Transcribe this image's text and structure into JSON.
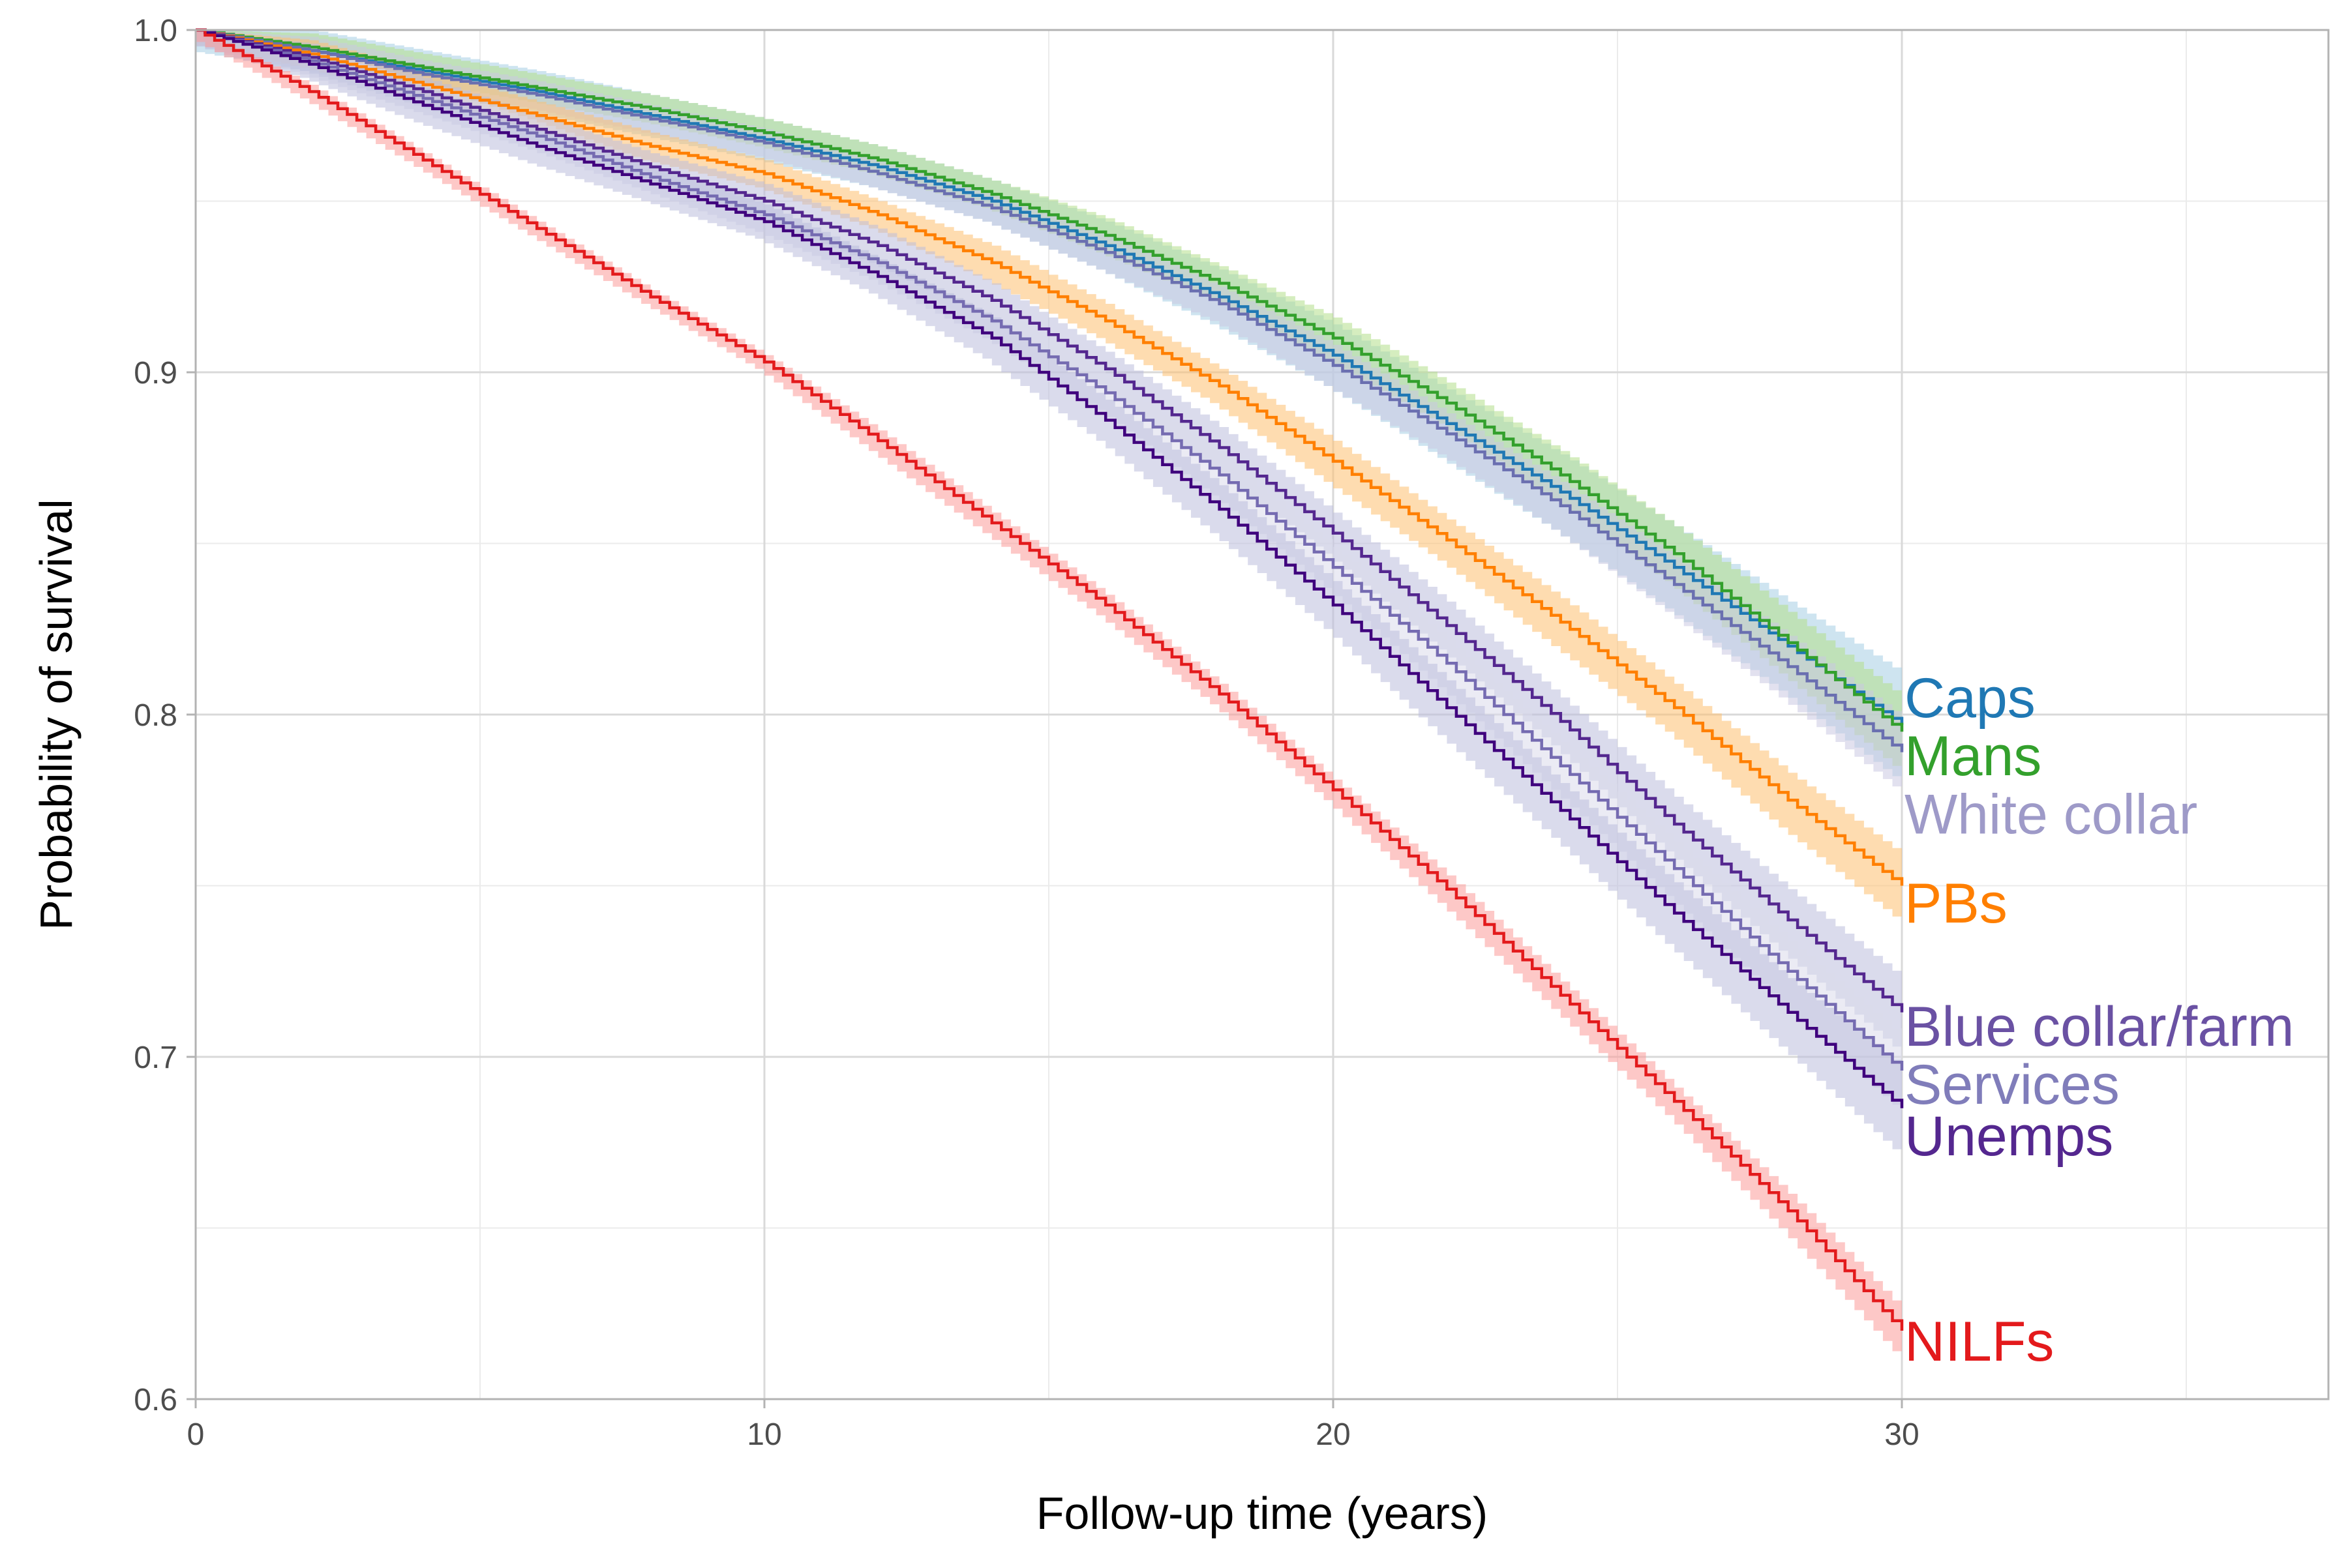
{
  "chart_data": {
    "type": "line",
    "subtype": "kaplan-meier survival curves with confidence bands",
    "title": "",
    "xlabel": "Follow-up time (years)",
    "ylabel": "Probability of survival",
    "xlim": [
      0,
      37.5
    ],
    "ylim": [
      0.6,
      1.0
    ],
    "xticks": [
      0,
      10,
      20,
      30
    ],
    "xtick_labels": [
      "0",
      "10",
      "20",
      "30"
    ],
    "yticks": [
      0.6,
      0.7,
      0.8,
      0.9,
      1.0
    ],
    "ytick_labels": [
      "0.6",
      "0.7",
      "0.8",
      "0.9",
      "1.0"
    ],
    "grid": true,
    "legend": "direct labels at line ends",
    "x": [
      0,
      2,
      4,
      6,
      8,
      10,
      12,
      14,
      16,
      18,
      20,
      22,
      24,
      26,
      28,
      30
    ],
    "series": [
      {
        "name": "Caps",
        "color": "#1f78b4",
        "band_color": "#a6cee3",
        "values": [
          1.0,
          0.994,
          0.988,
          0.982,
          0.975,
          0.968,
          0.96,
          0.95,
          0.937,
          0.922,
          0.905,
          0.885,
          0.865,
          0.843,
          0.82,
          0.797
        ],
        "band": [
          0.006,
          0.006,
          0.006,
          0.006,
          0.006,
          0.006,
          0.006,
          0.006,
          0.007,
          0.008,
          0.009,
          0.01,
          0.011,
          0.012,
          0.013,
          0.015
        ],
        "label_value": 0.805
      },
      {
        "name": "Mans",
        "color": "#33a02c",
        "band_color": "#b2df8a",
        "values": [
          1.0,
          0.995,
          0.989,
          0.983,
          0.977,
          0.97,
          0.962,
          0.952,
          0.94,
          0.926,
          0.91,
          0.891,
          0.87,
          0.847,
          0.821,
          0.795
        ],
        "band": [
          0.004,
          0.004,
          0.004,
          0.004,
          0.004,
          0.004,
          0.004,
          0.004,
          0.005,
          0.005,
          0.006,
          0.006,
          0.007,
          0.008,
          0.009,
          0.01
        ],
        "label_value": 0.788
      },
      {
        "name": "White collar",
        "color": "#6a6fb0",
        "label_color": "#9e9ac8",
        "band_color": "#cbc9e2",
        "values": [
          1.0,
          0.994,
          0.987,
          0.981,
          0.974,
          0.967,
          0.958,
          0.948,
          0.935,
          0.92,
          0.902,
          0.882,
          0.861,
          0.838,
          0.814,
          0.789
        ],
        "band": [
          0.004,
          0.004,
          0.004,
          0.004,
          0.004,
          0.004,
          0.004,
          0.004,
          0.005,
          0.005,
          0.006,
          0.006,
          0.007,
          0.008,
          0.009,
          0.01
        ],
        "label_value": 0.771
      },
      {
        "name": "PBs",
        "color": "#ff7f00",
        "band_color": "#fdbf6f",
        "values": [
          1.0,
          0.993,
          0.984,
          0.975,
          0.966,
          0.958,
          0.946,
          0.932,
          0.915,
          0.896,
          0.874,
          0.851,
          0.827,
          0.802,
          0.775,
          0.75
        ],
        "band": [
          0.004,
          0.004,
          0.004,
          0.004,
          0.004,
          0.004,
          0.004,
          0.005,
          0.005,
          0.005,
          0.006,
          0.006,
          0.007,
          0.007,
          0.008,
          0.009
        ],
        "label_value": 0.745
      },
      {
        "name": "Blue collar/farm",
        "color": "#54278f",
        "label_color": "#6a51a3",
        "band_color": "#bcbddc",
        "values": [
          1.0,
          0.992,
          0.982,
          0.971,
          0.96,
          0.95,
          0.937,
          0.921,
          0.901,
          0.878,
          0.853,
          0.826,
          0.798,
          0.768,
          0.74,
          0.713
        ],
        "band": [
          0.004,
          0.004,
          0.004,
          0.004,
          0.004,
          0.005,
          0.005,
          0.005,
          0.005,
          0.006,
          0.006,
          0.007,
          0.007,
          0.008,
          0.009,
          0.01
        ],
        "label_value": 0.709
      },
      {
        "name": "Services",
        "color": "#756bb1",
        "label_color": "#807dba",
        "band_color": "#dadaeb",
        "values": [
          1.0,
          0.991,
          0.98,
          0.969,
          0.957,
          0.946,
          0.932,
          0.915,
          0.894,
          0.87,
          0.843,
          0.815,
          0.785,
          0.755,
          0.725,
          0.696
        ],
        "band": [
          0.004,
          0.004,
          0.004,
          0.004,
          0.004,
          0.005,
          0.005,
          0.005,
          0.005,
          0.006,
          0.006,
          0.007,
          0.007,
          0.008,
          0.009,
          0.01
        ],
        "label_value": 0.692
      },
      {
        "name": "Unemps",
        "color": "#3f007d",
        "label_color": "#54278f",
        "band_color": "#bcbddc",
        "values": [
          1.0,
          0.99,
          0.978,
          0.966,
          0.955,
          0.944,
          0.928,
          0.91,
          0.886,
          0.86,
          0.832,
          0.802,
          0.772,
          0.742,
          0.713,
          0.685
        ],
        "band": [
          0.004,
          0.004,
          0.005,
          0.005,
          0.005,
          0.005,
          0.005,
          0.006,
          0.006,
          0.007,
          0.007,
          0.008,
          0.008,
          0.009,
          0.01,
          0.012
        ],
        "label_value": 0.677
      },
      {
        "name": "NILFs",
        "color": "#e31a1c",
        "band_color": "#fb9a99",
        "values": [
          1.0,
          0.982,
          0.962,
          0.942,
          0.922,
          0.903,
          0.88,
          0.856,
          0.832,
          0.806,
          0.778,
          0.749,
          0.718,
          0.687,
          0.655,
          0.62
        ],
        "band": [
          0.002,
          0.002,
          0.002,
          0.002,
          0.002,
          0.002,
          0.003,
          0.003,
          0.003,
          0.003,
          0.003,
          0.004,
          0.004,
          0.004,
          0.005,
          0.006
        ],
        "label_value": 0.617
      }
    ]
  }
}
